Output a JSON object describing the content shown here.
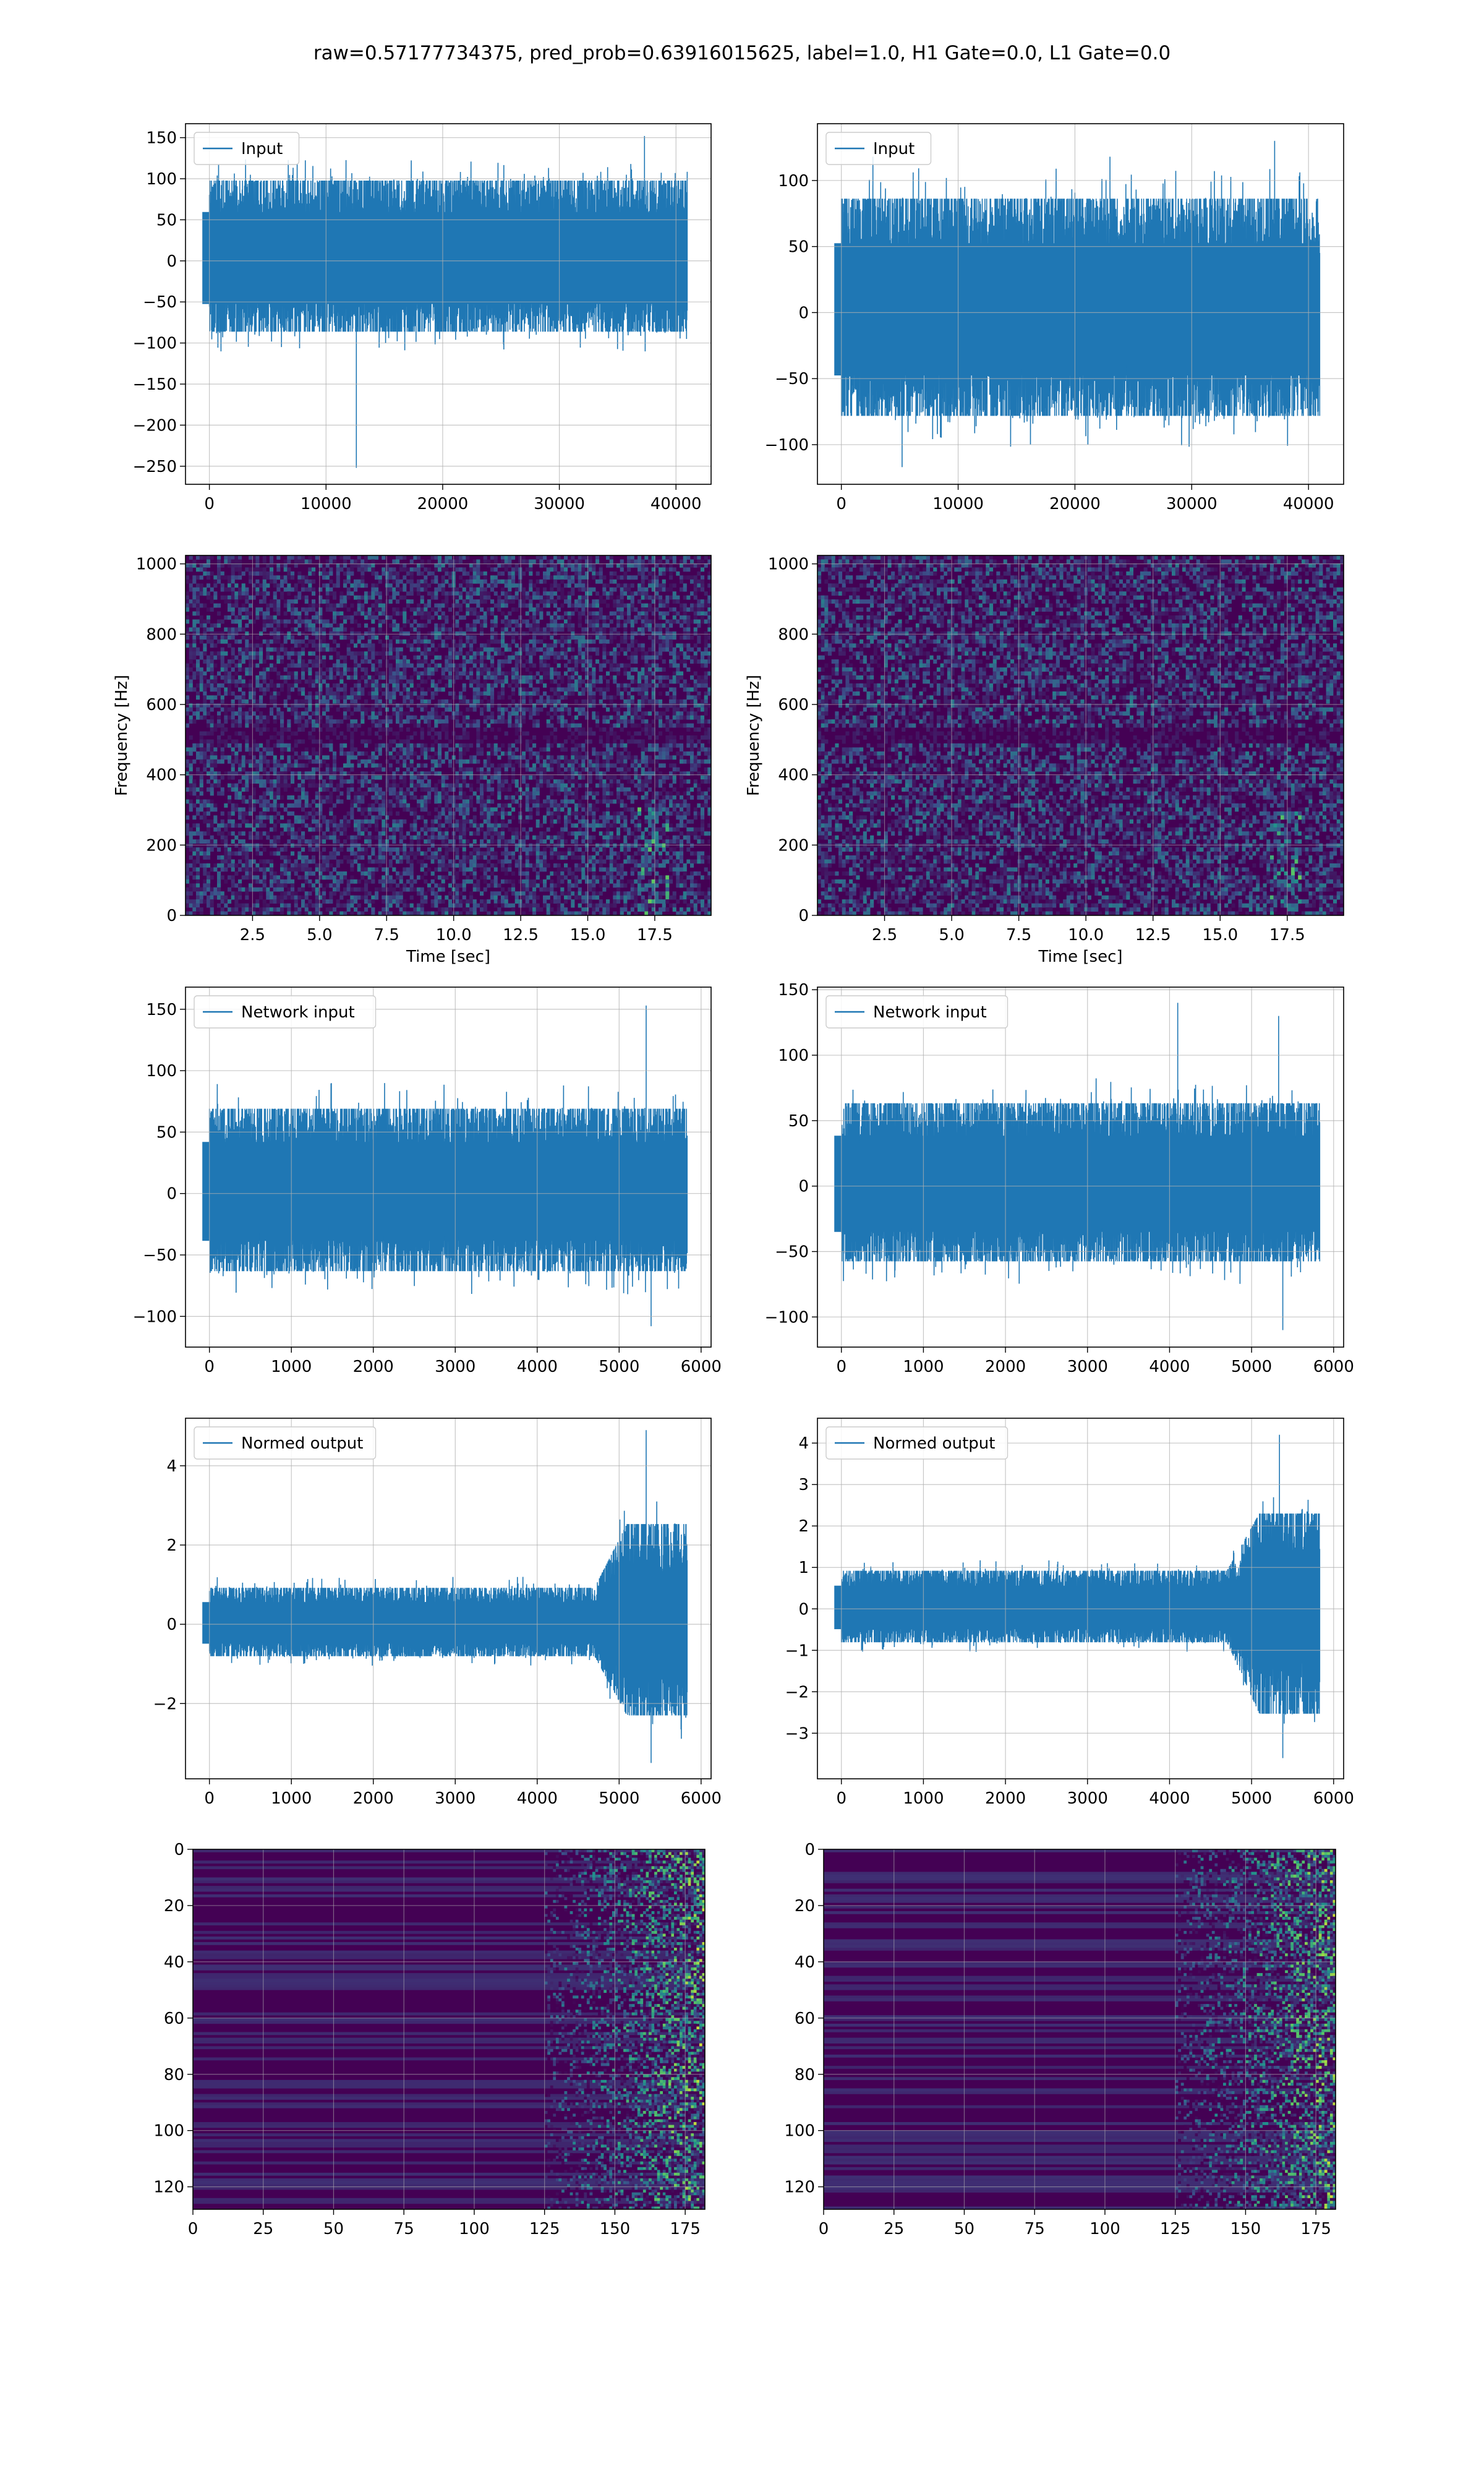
{
  "figure": {
    "title": "raw=0.57177734375, pred_prob=0.63916015625, label=1.0, H1 Gate=0.0, L1 Gate=0.0"
  },
  "colors": {
    "series": "#1f77b4",
    "grid": "#b0b0b0",
    "viridis_dark": "#440154",
    "viridis_mid": "#21918c",
    "viridis_light": "#5ec962",
    "viridis_bright": "#fde725"
  },
  "chart_data": [
    {
      "id": "left-input",
      "type": "line",
      "series": [
        {
          "name": "Input",
          "envelope": [
            -75,
            85
          ],
          "spikes": [
            {
              "x": 12600,
              "y": -252
            },
            {
              "x": 37300,
              "y": 152
            }
          ]
        }
      ],
      "x_range": [
        0,
        40960
      ],
      "xlim": [
        -2048,
        43008
      ],
      "ylim": [
        -272,
        167
      ],
      "xticks": [
        0,
        10000,
        20000,
        30000,
        40000
      ],
      "yticks": [
        -250,
        -200,
        -150,
        -100,
        -50,
        0,
        50,
        100,
        150
      ],
      "grid": true,
      "legend": "upper-left"
    },
    {
      "id": "right-input",
      "type": "line",
      "series": [
        {
          "name": "Input",
          "envelope": [
            -68,
            75
          ],
          "spikes": [
            {
              "x": 37100,
              "y": 130
            },
            {
              "x": 2700,
              "y": 118
            },
            {
              "x": 23000,
              "y": 118
            },
            {
              "x": 5200,
              "y": -117
            }
          ]
        }
      ],
      "x_range": [
        0,
        40960
      ],
      "xlim": [
        -2048,
        43008
      ],
      "ylim": [
        -130,
        143
      ],
      "xticks": [
        0,
        10000,
        20000,
        30000,
        40000
      ],
      "yticks": [
        -100,
        -50,
        0,
        50,
        100
      ],
      "grid": true,
      "legend": "upper-left"
    },
    {
      "id": "left-spectrogram",
      "type": "heatmap",
      "xlabel": "Time [sec]",
      "ylabel": "Frequency [Hz]",
      "xlim": [
        0,
        19.6
      ],
      "ylim": [
        0,
        1024
      ],
      "xticks": [
        "2.5",
        "5.0",
        "7.5",
        "10.0",
        "12.5",
        "15.0",
        "17.5"
      ],
      "xtick_values": [
        2.5,
        5.0,
        7.5,
        10.0,
        12.5,
        15.0,
        17.5
      ],
      "yticks": [
        0,
        200,
        400,
        600,
        800,
        1000
      ],
      "grid": true,
      "colormap": "viridis"
    },
    {
      "id": "right-spectrogram",
      "type": "heatmap",
      "xlabel": "Time [sec]",
      "ylabel": "Frequency [Hz]",
      "xlim": [
        0,
        19.6
      ],
      "ylim": [
        0,
        1024
      ],
      "xticks": [
        "2.5",
        "5.0",
        "7.5",
        "10.0",
        "12.5",
        "15.0",
        "17.5"
      ],
      "xtick_values": [
        2.5,
        5.0,
        7.5,
        10.0,
        12.5,
        15.0,
        17.5
      ],
      "yticks": [
        0,
        200,
        400,
        600,
        800,
        1000
      ],
      "grid": true,
      "colormap": "viridis"
    },
    {
      "id": "left-network-input",
      "type": "line",
      "series": [
        {
          "name": "Network input",
          "envelope": [
            -55,
            60
          ],
          "spikes": [
            {
              "x": 5330,
              "y": 153
            },
            {
              "x": 5390,
              "y": -108
            }
          ]
        }
      ],
      "x_range": [
        0,
        5830
      ],
      "xlim": [
        -292,
        6122
      ],
      "ylim": [
        -125,
        168
      ],
      "xticks": [
        0,
        1000,
        2000,
        3000,
        4000,
        5000,
        6000
      ],
      "yticks": [
        -100,
        -50,
        0,
        50,
        100,
        150
      ],
      "grid": true,
      "legend": "upper-left"
    },
    {
      "id": "right-network-input",
      "type": "line",
      "series": [
        {
          "name": "Network input",
          "envelope": [
            -50,
            55
          ],
          "spikes": [
            {
              "x": 4100,
              "y": 140
            },
            {
              "x": 5330,
              "y": 130
            },
            {
              "x": 5380,
              "y": -110
            }
          ]
        }
      ],
      "x_range": [
        0,
        5830
      ],
      "xlim": [
        -292,
        6122
      ],
      "ylim": [
        -123,
        152
      ],
      "xticks": [
        0,
        1000,
        2000,
        3000,
        4000,
        5000,
        6000
      ],
      "yticks": [
        -100,
        -50,
        0,
        50,
        100,
        150
      ],
      "grid": true,
      "legend": "upper-left"
    },
    {
      "id": "left-normed-output",
      "type": "line",
      "series": [
        {
          "name": "Normed output",
          "envelope": [
            -0.7,
            0.8
          ],
          "late_envelope": [
            -2.0,
            2.2
          ],
          "late_start": 4700,
          "spikes": [
            {
              "x": 5330,
              "y": 4.9
            },
            {
              "x": 5390,
              "y": -3.5
            }
          ]
        }
      ],
      "x_range": [
        0,
        5830
      ],
      "xlim": [
        -292,
        6122
      ],
      "ylim": [
        -3.9,
        5.2
      ],
      "xticks": [
        0,
        1000,
        2000,
        3000,
        4000,
        5000,
        6000
      ],
      "yticks": [
        -2,
        0,
        2,
        4
      ],
      "grid": true,
      "legend": "upper-left"
    },
    {
      "id": "right-normed-output",
      "type": "line",
      "series": [
        {
          "name": "Normed output",
          "envelope": [
            -0.7,
            0.8
          ],
          "late_envelope": [
            -2.2,
            2.0
          ],
          "late_start": 4700,
          "spikes": [
            {
              "x": 5340,
              "y": 4.2
            },
            {
              "x": 5380,
              "y": -3.6
            }
          ]
        }
      ],
      "x_range": [
        0,
        5830
      ],
      "xlim": [
        -292,
        6122
      ],
      "ylim": [
        -4.1,
        4.6
      ],
      "xticks": [
        0,
        1000,
        2000,
        3000,
        4000,
        5000,
        6000
      ],
      "yticks": [
        -3,
        -2,
        -1,
        0,
        1,
        2,
        3,
        4
      ],
      "grid": true,
      "legend": "upper-left"
    },
    {
      "id": "left-activation-map",
      "type": "heatmap",
      "rows": 128,
      "cols": 182,
      "active_from_col": 125,
      "xlim": [
        0,
        182
      ],
      "ylim": [
        128,
        0
      ],
      "xticks": [
        0,
        25,
        50,
        75,
        100,
        125,
        150,
        175
      ],
      "yticks": [
        0,
        20,
        40,
        60,
        80,
        100,
        120
      ],
      "grid": true,
      "colormap": "viridis"
    },
    {
      "id": "right-activation-map",
      "type": "heatmap",
      "rows": 128,
      "cols": 182,
      "active_from_col": 125,
      "xlim": [
        0,
        182
      ],
      "ylim": [
        128,
        0
      ],
      "xticks": [
        0,
        25,
        50,
        75,
        100,
        125,
        150,
        175
      ],
      "yticks": [
        0,
        20,
        40,
        60,
        80,
        100,
        120
      ],
      "grid": true,
      "colormap": "viridis"
    }
  ]
}
